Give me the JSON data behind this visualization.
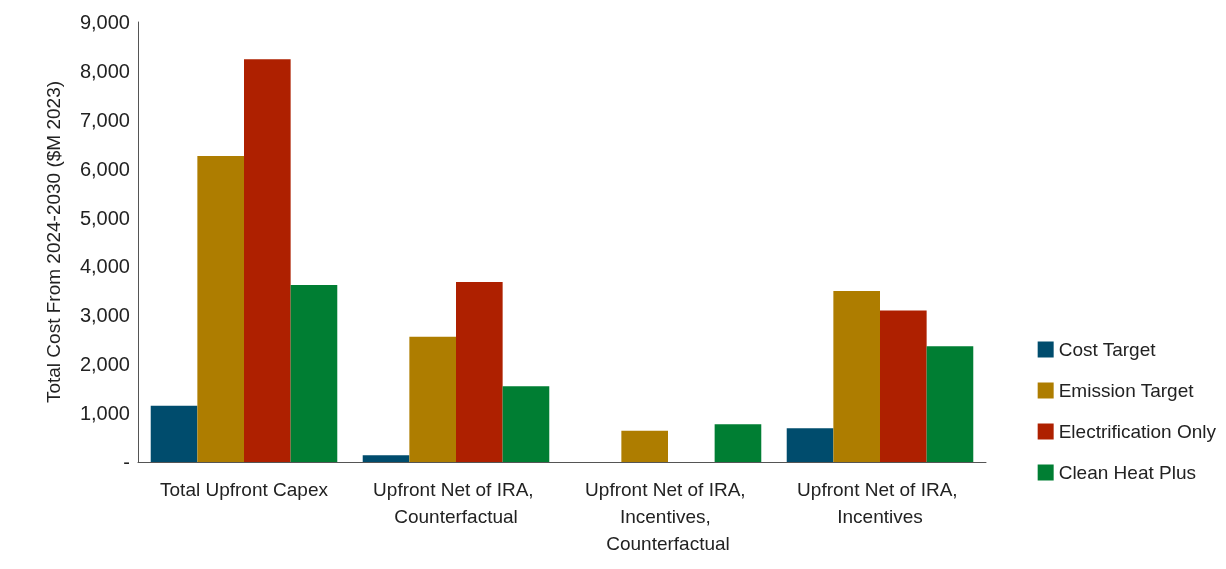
{
  "chart_data": {
    "type": "bar",
    "ylabel": "Total Cost From 2024-2030 ($M 2023)",
    "categories": [
      "Total Upfront Capex",
      "Upfront Net of IRA, Counterfactual",
      "Upfront Net of IRA, Incentives, Counterfactual",
      "Upfront Net of IRA, Incentives"
    ],
    "series": [
      {
        "name": "Cost Target",
        "color": "#004c6d",
        "values": [
          1150,
          140,
          null,
          690
        ]
      },
      {
        "name": "Emission Target",
        "color": "#ae7d00",
        "values": [
          6260,
          2560,
          640,
          3500
        ]
      },
      {
        "name": "Electrification Only",
        "color": "#ae2000",
        "values": [
          8240,
          3680,
          null,
          3100
        ]
      },
      {
        "name": "Clean Heat Plus",
        "color": "#007e33",
        "values": [
          3620,
          1550,
          770,
          2370
        ]
      }
    ],
    "ylim": [
      0,
      9000
    ],
    "yticks": [
      {
        "value": 0,
        "label": "-"
      },
      {
        "value": 1000,
        "label": "1,000"
      },
      {
        "value": 2000,
        "label": "2,000"
      },
      {
        "value": 3000,
        "label": "3,000"
      },
      {
        "value": 4000,
        "label": "4,000"
      },
      {
        "value": 5000,
        "label": "5,000"
      },
      {
        "value": 6000,
        "label": "6,000"
      },
      {
        "value": 7000,
        "label": "7,000"
      },
      {
        "value": 8000,
        "label": "8,000"
      },
      {
        "value": 9000,
        "label": "9,000"
      }
    ],
    "grid": false,
    "legend": "right"
  }
}
